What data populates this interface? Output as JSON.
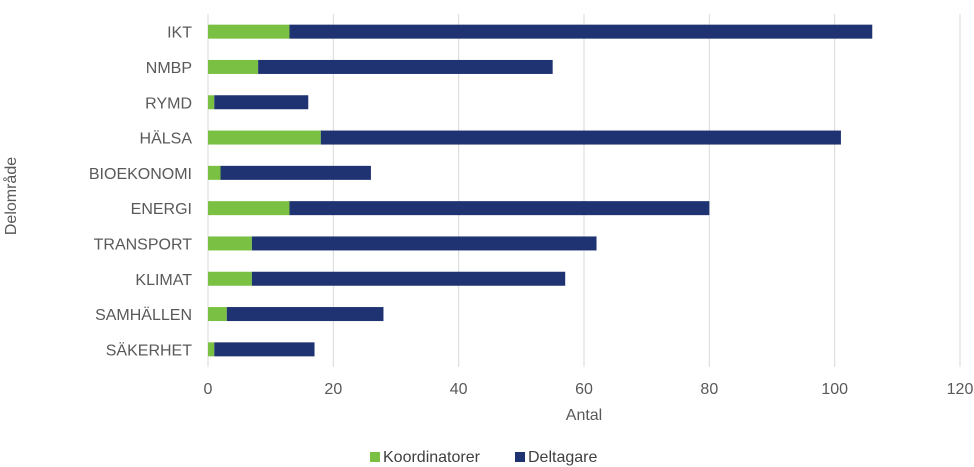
{
  "chart_data": {
    "type": "bar",
    "orientation": "horizontal",
    "stacked": true,
    "categories": [
      "IKT",
      "NMBP",
      "RYMD",
      "HÄLSA",
      "BIOEKONOMI",
      "ENERGI",
      "TRANSPORT",
      "KLIMAT",
      "SAMHÄLLEN",
      "SÄKERHET"
    ],
    "series": [
      {
        "name": "Koordinatorer",
        "color": "#7ac143",
        "values": [
          13,
          8,
          1,
          18,
          2,
          13,
          7,
          7,
          3,
          1
        ]
      },
      {
        "name": "Deltagare",
        "color": "#1f3271",
        "values": [
          93,
          47,
          15,
          83,
          24,
          67,
          55,
          50,
          25,
          16
        ]
      }
    ],
    "title": "",
    "xlabel": "Antal",
    "ylabel": "Delområde",
    "xlim": [
      0,
      120
    ],
    "xticks": [
      "0",
      "20",
      "40",
      "60",
      "80",
      "100",
      "120"
    ],
    "grid": "vertical",
    "legend": "bottom"
  }
}
